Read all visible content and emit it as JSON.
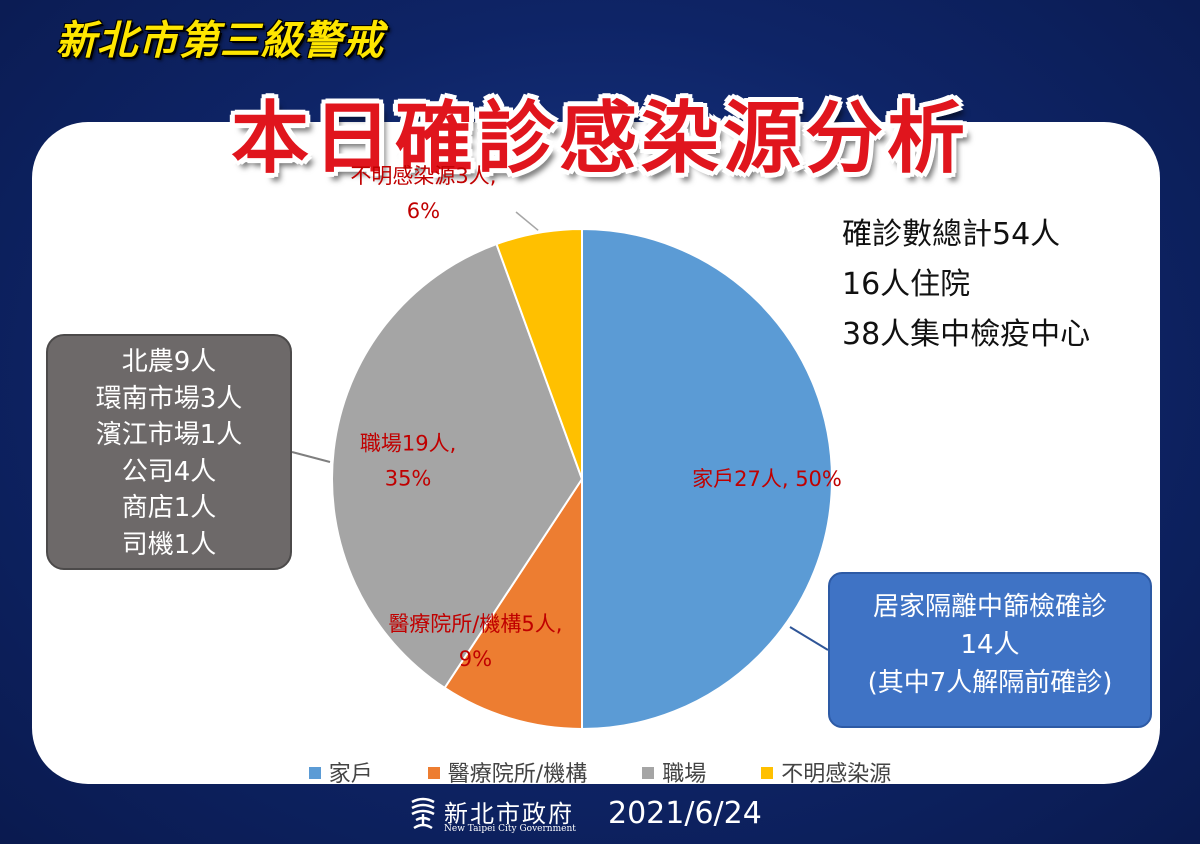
{
  "header": {
    "banner": "新北市第三級警戒",
    "title": "本日確診感染源分析"
  },
  "stats": [
    "確診數總計54人",
    "16人住院",
    "38人集中檢疫中心"
  ],
  "workplace_breakdown": [
    "北農9人",
    "環南市場3人",
    "濱江市場1人",
    "公司4人",
    "商店1人",
    "司機1人"
  ],
  "home_note": [
    "居家隔離中篩檢確診",
    "14人",
    "(其中7人解隔前確診)"
  ],
  "chart_data": {
    "type": "pie",
    "categories": [
      "家戶",
      "醫療院所/機構",
      "職場",
      "不明感染源"
    ],
    "values": [
      27,
      5,
      19,
      3
    ],
    "percent": [
      50,
      9,
      35,
      6
    ],
    "colors": [
      "#5b9bd5",
      "#ed7d31",
      "#a5a5a5",
      "#ffc000"
    ],
    "data_labels": [
      [
        "家戶27人, 50%"
      ],
      [
        "醫療院所/機構5人,",
        "9%"
      ],
      [
        "職場19人,",
        "35%"
      ],
      [
        "不明感染源3人,",
        "6%"
      ]
    ],
    "label_color": "#c00000",
    "legend_position": "bottom"
  },
  "footer": {
    "logo_name": "新北市政府",
    "logo_en": "New Taipei City Government",
    "date": "2021/6/24"
  }
}
